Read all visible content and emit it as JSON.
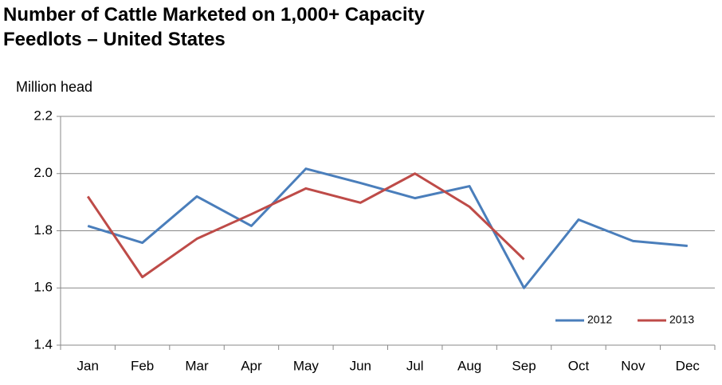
{
  "chart_data": {
    "type": "line",
    "title": [
      "Number of Cattle Marketed on 1,000+ Capacity",
      "Feedlots – United States"
    ],
    "y_label": "Million head",
    "categories": [
      "Jan",
      "Feb",
      "Mar",
      "Apr",
      "May",
      "Jun",
      "Jul",
      "Aug",
      "Sep",
      "Oct",
      "Nov",
      "Dec"
    ],
    "series": [
      {
        "name": "2012",
        "color": "#4a7ebb",
        "values": [
          1.817,
          1.758,
          1.92,
          1.817,
          2.017,
          1.967,
          1.914,
          1.956,
          1.6,
          1.839,
          1.764,
          1.747
        ]
      },
      {
        "name": "2013",
        "color": "#be4b48",
        "values": [
          1.92,
          1.638,
          1.772,
          1.858,
          1.948,
          1.898,
          2.0,
          1.884,
          1.7,
          null,
          null,
          null
        ]
      }
    ],
    "ylim": [
      1.4,
      2.2
    ],
    "yticks": [
      1.4,
      1.6,
      1.8,
      {
        "value": 2,
        "label": "2.0"
      },
      2.2
    ],
    "grid": true,
    "legend": "lower right"
  }
}
